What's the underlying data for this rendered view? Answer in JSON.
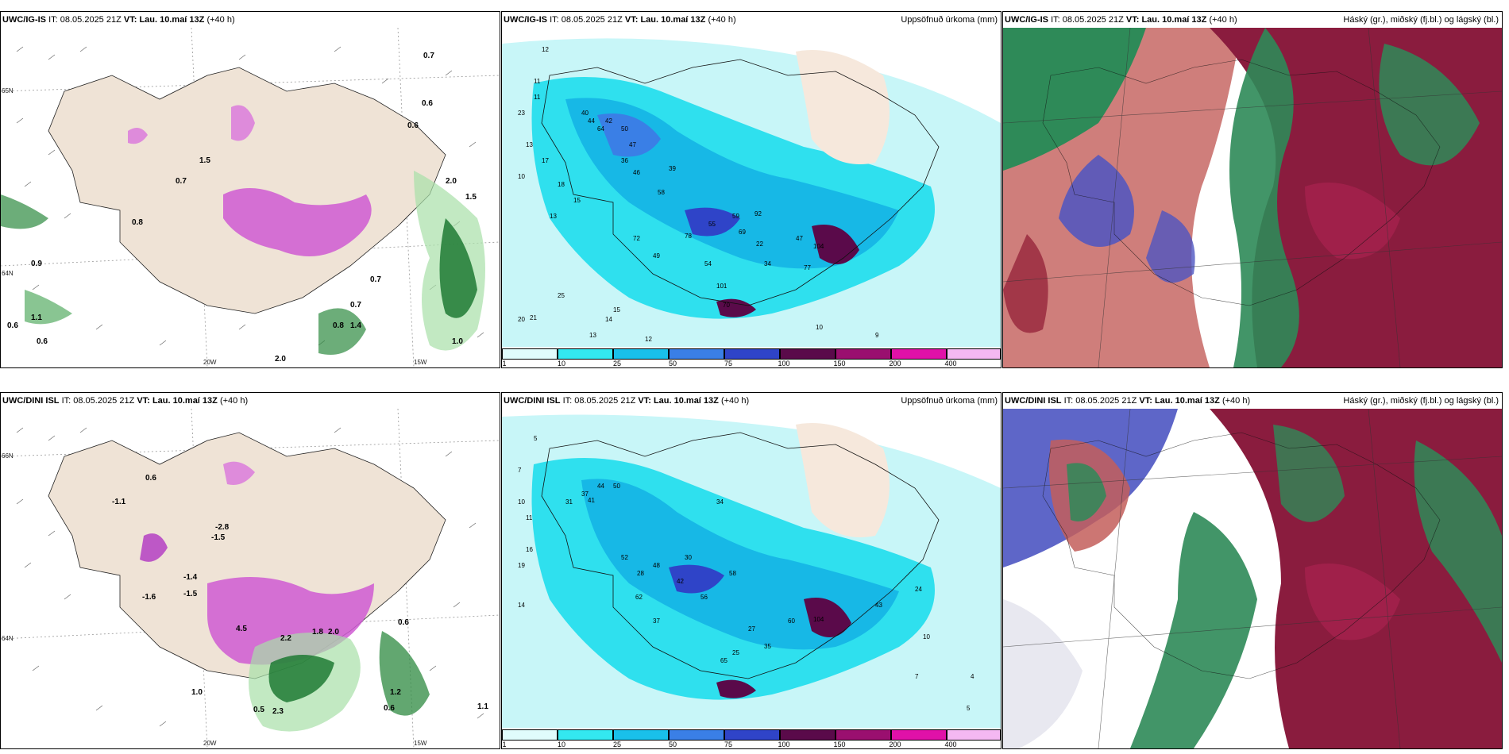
{
  "rows": [
    {
      "model_label": "UWC/IG-IS",
      "it_label": "IT:",
      "it_value": "08.05.2025 21Z",
      "vt_label": "VT:",
      "vt_value": "Lau. 10.maí 13Z",
      "lead": "(+40 h)",
      "precip_title": "Uppsöfnuð úrkoma (mm)",
      "cloud_title": "Háský (gr.), miðský (fj.bl.) og lágský (bl.)",
      "temp_labels": [
        "0.7",
        "0.6",
        "0.6",
        "1.5",
        "0.7",
        "0.8",
        "0.9",
        "1.1",
        "0.6",
        "0.6",
        "0.7",
        "0.8",
        "1.4",
        "0.7",
        "1.0",
        "1.5",
        "2.0",
        "2.0"
      ],
      "precip_labels": [
        "12",
        "11",
        "11",
        "23",
        "13",
        "17",
        "10",
        "18",
        "15",
        "13",
        "20",
        "21",
        "25",
        "14",
        "13",
        "12",
        "40",
        "44",
        "42",
        "50",
        "64",
        "47",
        "36",
        "46",
        "58",
        "39",
        "72",
        "49",
        "54",
        "78",
        "55",
        "59",
        "92",
        "69",
        "22",
        "34",
        "47",
        "104",
        "77",
        "101",
        "70",
        "15",
        "10",
        "9"
      ],
      "lon_labels": [
        "20W",
        "15W"
      ],
      "lat_labels": [
        "65N",
        "64N"
      ]
    },
    {
      "model_label": "UWC/DINI ISL",
      "it_label": "IT:",
      "it_value": "08.05.2025 21Z",
      "vt_label": "VT:",
      "vt_value": "Lau. 10.maí 13Z",
      "lead": "(+40 h)",
      "precip_title": "Uppsöfnuð úrkoma (mm)",
      "cloud_title": "Háský (gr.), miðský (fj.bl.) og lágský (bl.)",
      "temp_labels": [
        "0.6",
        "-1.1",
        "-2.8",
        "-1.5",
        "-1.4",
        "-1.6",
        "-1.5",
        "4.5",
        "2.2",
        "1.8",
        "2.0",
        "0.6",
        "1.2",
        "0.6",
        "1.1",
        "1.0",
        "0.5",
        "2.3"
      ],
      "precip_labels": [
        "5",
        "7",
        "10",
        "11",
        "19",
        "16",
        "14",
        "31",
        "37",
        "44",
        "50",
        "41",
        "52",
        "28",
        "62",
        "37",
        "42",
        "48",
        "30",
        "34",
        "58",
        "60",
        "104",
        "56",
        "35",
        "25",
        "27",
        "65",
        "43",
        "24",
        "10",
        "7",
        "5",
        "4"
      ],
      "lon_labels": [
        "20W",
        "15W"
      ],
      "lat_labels": [
        "66N",
        "64N"
      ]
    }
  ],
  "colorbar": {
    "ticks": [
      "1",
      "10",
      "25",
      "50",
      "75",
      "100",
      "150",
      "200",
      "400"
    ],
    "colors": [
      "#e0fcfc",
      "#33e8f0",
      "#19c0ea",
      "#3a7fe6",
      "#2f44c8",
      "#5a0a4a",
      "#9a0f6f",
      "#e011a8",
      "#f4b8f2"
    ]
  }
}
